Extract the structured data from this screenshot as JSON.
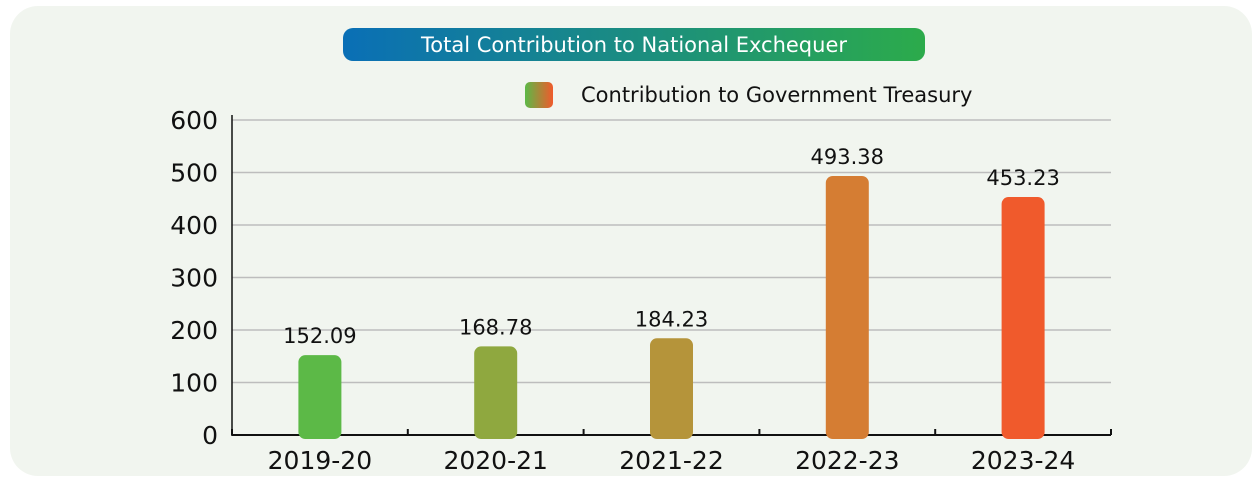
{
  "chart_data": {
    "type": "bar",
    "title": "Total Contribution to National Exchequer",
    "categories": [
      "2019-20",
      "2020-21",
      "2021-22",
      "2022-23",
      "2023-24"
    ],
    "series": [
      {
        "name": "Contribution to Government Treasury",
        "values": [
          152.09,
          168.78,
          184.23,
          493.38,
          453.23
        ]
      }
    ],
    "data_labels": [
      "152.09",
      "168.78",
      "184.23",
      "493.38",
      "453.23"
    ],
    "yticks": [
      "0",
      "100",
      "200",
      "300",
      "400",
      "500",
      "600"
    ],
    "ylim": [
      0,
      600
    ],
    "grid": true,
    "legend_position": "top-right",
    "bar_colors": [
      "#5cb947",
      "#8fa83f",
      "#b5943a",
      "#d57d33",
      "#f05a2c"
    ],
    "title_gradient": [
      "#0a6fb6",
      "#2cab4b"
    ],
    "legend_gradient": [
      "#5cb947",
      "#f05a2c"
    ]
  }
}
